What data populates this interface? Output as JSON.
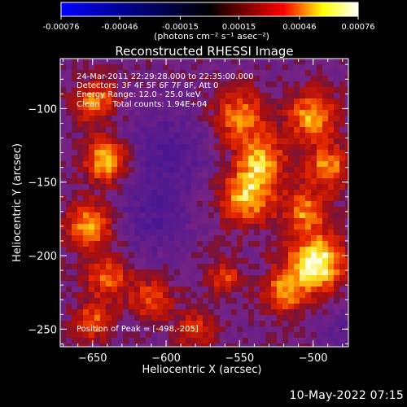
{
  "colorbar": {
    "ticks": [
      -0.00076,
      -0.00046,
      -0.00015,
      0.00015,
      0.00046,
      0.00076
    ],
    "tick_labels": [
      "-0.00076",
      "-0.00046",
      "-0.00015",
      "0.00015",
      "0.00046",
      "0.00076"
    ],
    "unit_label": "(photons cm⁻² s⁻¹ asec⁻²)",
    "range": [
      -0.00076,
      0.00076
    ],
    "colors": [
      "#0000ff",
      "#000000",
      "#ff0000",
      "#ffff00",
      "#ffffff"
    ]
  },
  "annotations": {
    "time_range": "24-Mar-2011 22:29:28.000 to 22:35:00.000",
    "detectors": "Detectors: 3F 4F 5F 6F 7F 8F, Att 0",
    "energy_range": "Energy Range: 12.0 - 25.0 keV",
    "clean_counts": "Clean     Total counts: 1.94E+04",
    "peak_position": "Position of Peak = [-498,-205]"
  },
  "footer_date": "10-May-2022 07:15",
  "chart_data": {
    "type": "heatmap",
    "title": "Reconstructed RHESSI Image",
    "xlabel": "Heliocentric X (arcsec)",
    "ylabel": "Heliocentric Y (arcsec)",
    "xlim": [
      -672,
      -476
    ],
    "ylim": [
      -262,
      -66
    ],
    "xticks": [
      -650,
      -600,
      -550,
      -500
    ],
    "yticks": [
      -100,
      -150,
      -200,
      -250
    ],
    "xtick_labels": [
      "−650",
      "−600",
      "−550",
      "−500"
    ],
    "ytick_labels": [
      "−100",
      "−150",
      "−200",
      "−250"
    ],
    "peak": [
      -498,
      -205
    ],
    "grid": false,
    "colormap": "purple-red-yellow-white (RHESSI)",
    "hot_regions": [
      {
        "x": -648,
        "y": -95,
        "r": 14,
        "v": 0.6
      },
      {
        "x": -640,
        "y": -135,
        "r": 14,
        "v": 0.85
      },
      {
        "x": -652,
        "y": -180,
        "r": 16,
        "v": 0.7
      },
      {
        "x": -640,
        "y": -215,
        "r": 14,
        "v": 0.55
      },
      {
        "x": -650,
        "y": -245,
        "r": 12,
        "v": 0.55
      },
      {
        "x": -550,
        "y": -105,
        "r": 18,
        "v": 0.6
      },
      {
        "x": -535,
        "y": -135,
        "r": 16,
        "v": 0.65
      },
      {
        "x": -545,
        "y": -160,
        "r": 18,
        "v": 0.75
      },
      {
        "x": -500,
        "y": -105,
        "r": 16,
        "v": 0.7
      },
      {
        "x": -490,
        "y": -140,
        "r": 14,
        "v": 0.65
      },
      {
        "x": -505,
        "y": -170,
        "r": 14,
        "v": 0.6
      },
      {
        "x": -498,
        "y": -205,
        "r": 18,
        "v": 1.0
      },
      {
        "x": -520,
        "y": -225,
        "r": 14,
        "v": 0.6
      },
      {
        "x": -610,
        "y": -230,
        "r": 14,
        "v": 0.5
      },
      {
        "x": -580,
        "y": -250,
        "r": 12,
        "v": 0.45
      },
      {
        "x": -560,
        "y": -215,
        "r": 12,
        "v": 0.45
      }
    ],
    "cold_regions": [
      {
        "x": -600,
        "y": -130,
        "r": 26,
        "v": -0.35
      },
      {
        "x": -610,
        "y": -175,
        "r": 22,
        "v": -0.3
      },
      {
        "x": -470,
        "y": -255,
        "r": 18,
        "v": -0.3
      }
    ]
  }
}
